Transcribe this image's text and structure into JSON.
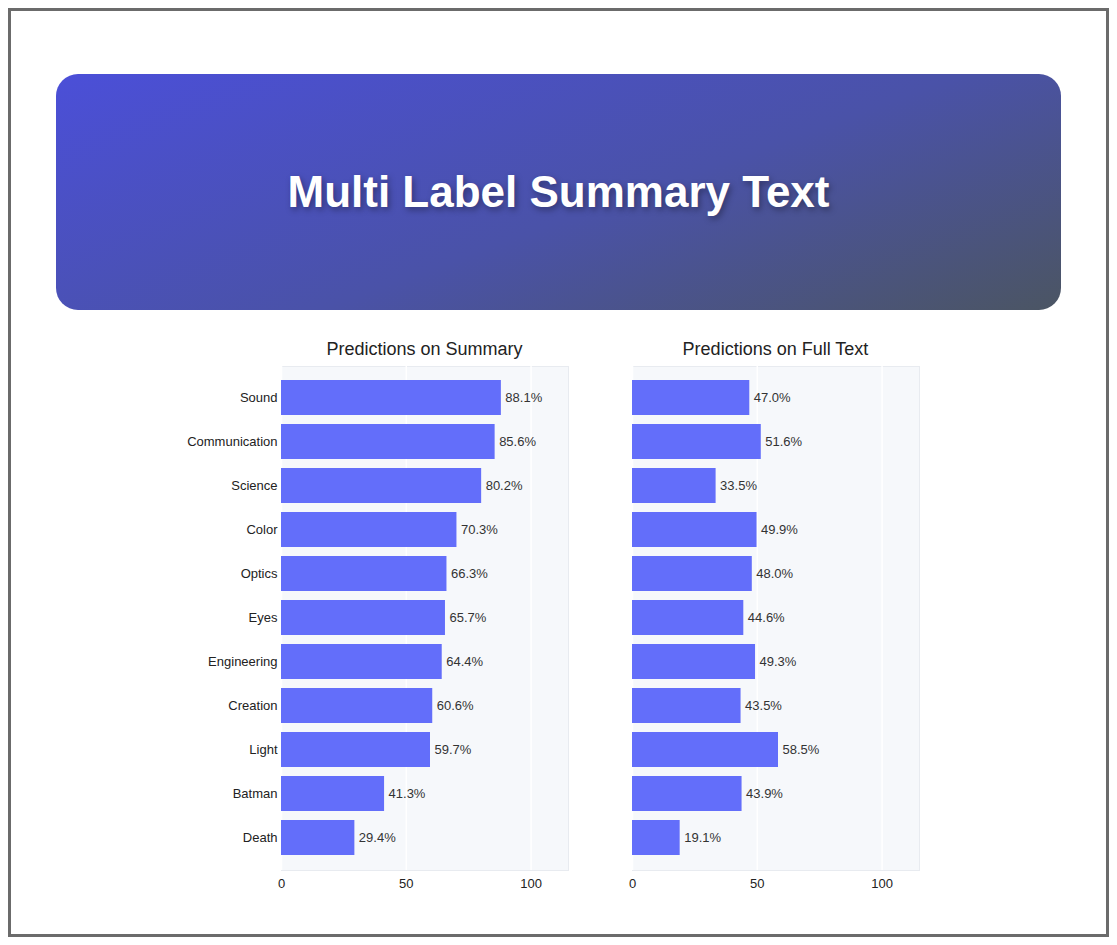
{
  "header": {
    "title": "Multi Label Summary Text"
  },
  "chart_data": [
    {
      "type": "bar",
      "orientation": "horizontal",
      "title": "Predictions on Summary",
      "categories": [
        "Sound",
        "Communication",
        "Science",
        "Color",
        "Optics",
        "Eyes",
        "Engineering",
        "Creation",
        "Light",
        "Batman",
        "Death"
      ],
      "values": [
        88.1,
        85.6,
        80.2,
        70.3,
        66.3,
        65.7,
        64.4,
        60.6,
        59.7,
        41.3,
        29.4
      ],
      "value_labels": [
        "88.1%",
        "85.6%",
        "80.2%",
        "70.3%",
        "66.3%",
        "65.7%",
        "64.4%",
        "60.6%",
        "59.7%",
        "41.3%",
        "29.4%"
      ],
      "color": "#636efa",
      "xlim": [
        0,
        115
      ],
      "xticks": [
        0,
        50,
        100
      ],
      "grid": true,
      "data_labels": true
    },
    {
      "type": "bar",
      "orientation": "horizontal",
      "title": "Predictions on Full Text",
      "categories": [
        "Sound",
        "Communication",
        "Science",
        "Color",
        "Optics",
        "Eyes",
        "Engineering",
        "Creation",
        "Light",
        "Batman",
        "Death"
      ],
      "values": [
        47.0,
        51.6,
        33.5,
        49.9,
        48.0,
        44.6,
        49.3,
        43.5,
        58.5,
        43.9,
        19.1
      ],
      "value_labels": [
        "47.0%",
        "51.6%",
        "33.5%",
        "49.9%",
        "48.0%",
        "44.6%",
        "49.3%",
        "43.5%",
        "58.5%",
        "43.9%",
        "19.1%"
      ],
      "color": "#636efa",
      "xlim": [
        0,
        115
      ],
      "xticks": [
        0,
        50,
        100
      ],
      "grid": true,
      "data_labels": true,
      "tick_labels": "x"
    }
  ]
}
